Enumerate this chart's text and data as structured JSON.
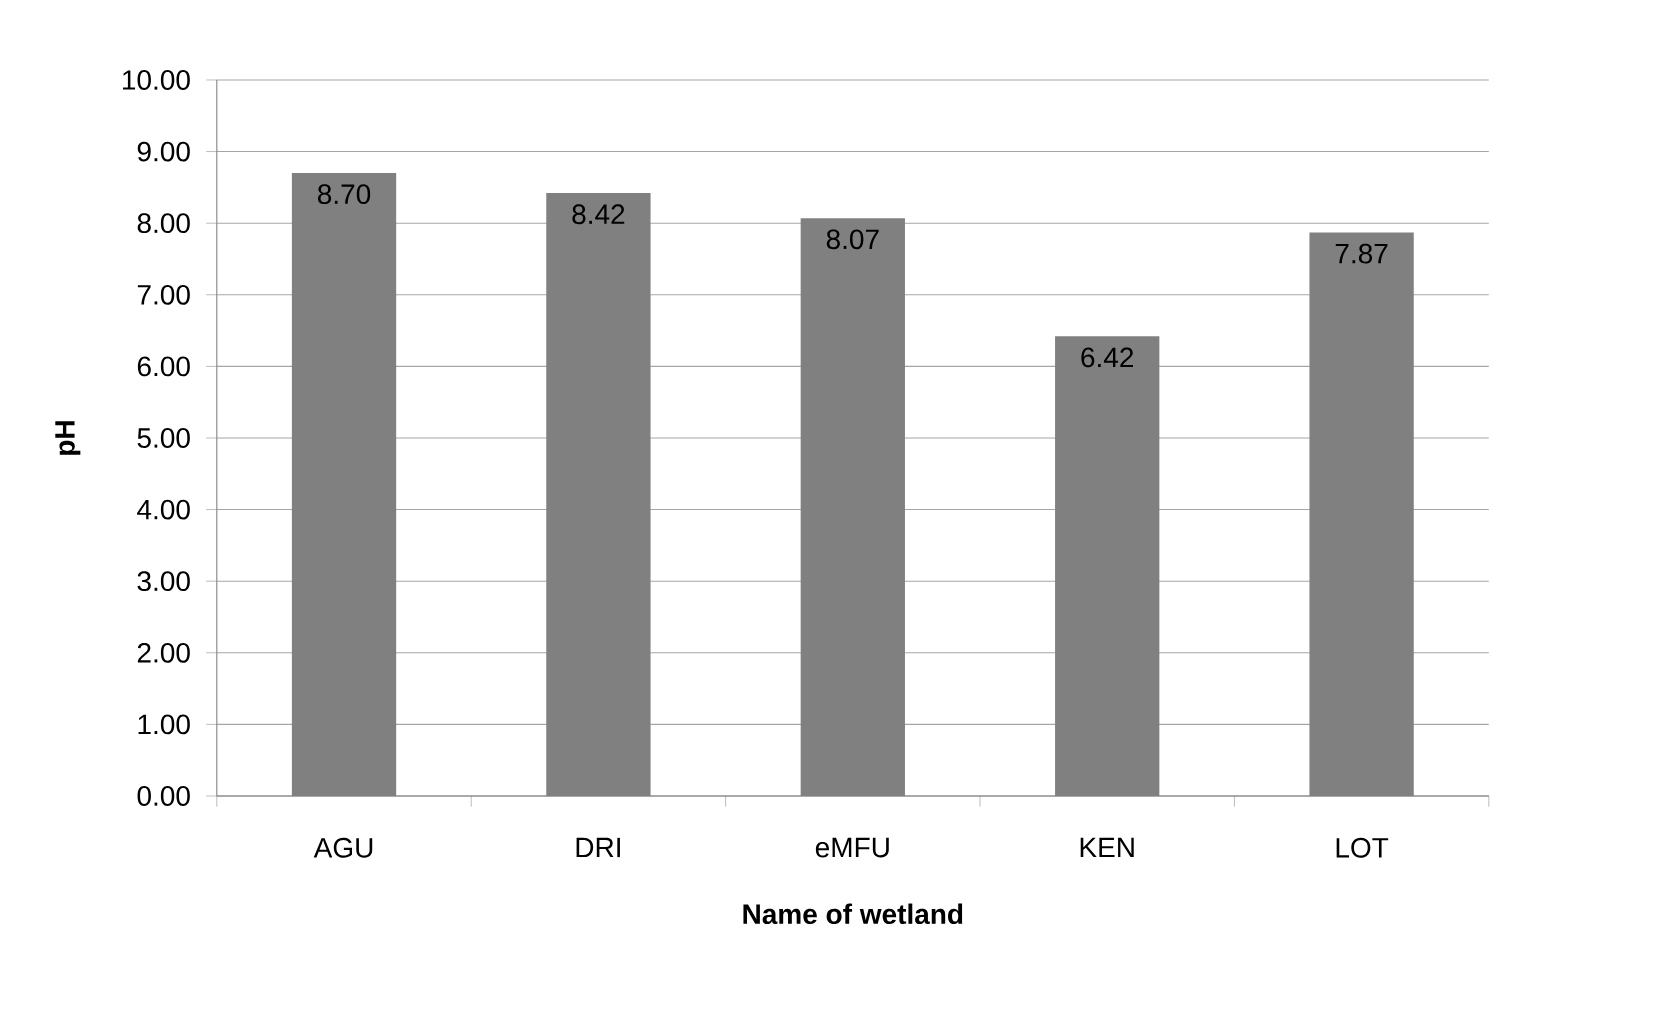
{
  "chart_data": {
    "type": "bar",
    "categories": [
      "AGU",
      "DRI",
      "eMFU",
      "KEN",
      "LOT"
    ],
    "values": [
      8.7,
      8.42,
      8.07,
      6.42,
      7.87
    ],
    "value_labels": [
      "8.70",
      "8.42",
      "8.07",
      "6.42",
      "7.87"
    ],
    "color": "#808080",
    "xlabel": "Name of wetland",
    "ylabel": "pH",
    "ylim": [
      0,
      10
    ],
    "yticks": [
      {
        "value": 0,
        "label": "0.00"
      },
      {
        "value": 1,
        "label": "1.00"
      },
      {
        "value": 2,
        "label": "2.00"
      },
      {
        "value": 3,
        "label": "3.00"
      },
      {
        "value": 4,
        "label": "4.00"
      },
      {
        "value": 5,
        "label": "5.00"
      },
      {
        "value": 6,
        "label": "6.00"
      },
      {
        "value": 7,
        "label": "7.00"
      },
      {
        "value": 8,
        "label": "8.00"
      },
      {
        "value": 9,
        "label": "9.00"
      },
      {
        "value": 10,
        "label": "10.00"
      }
    ],
    "grid": "y"
  }
}
